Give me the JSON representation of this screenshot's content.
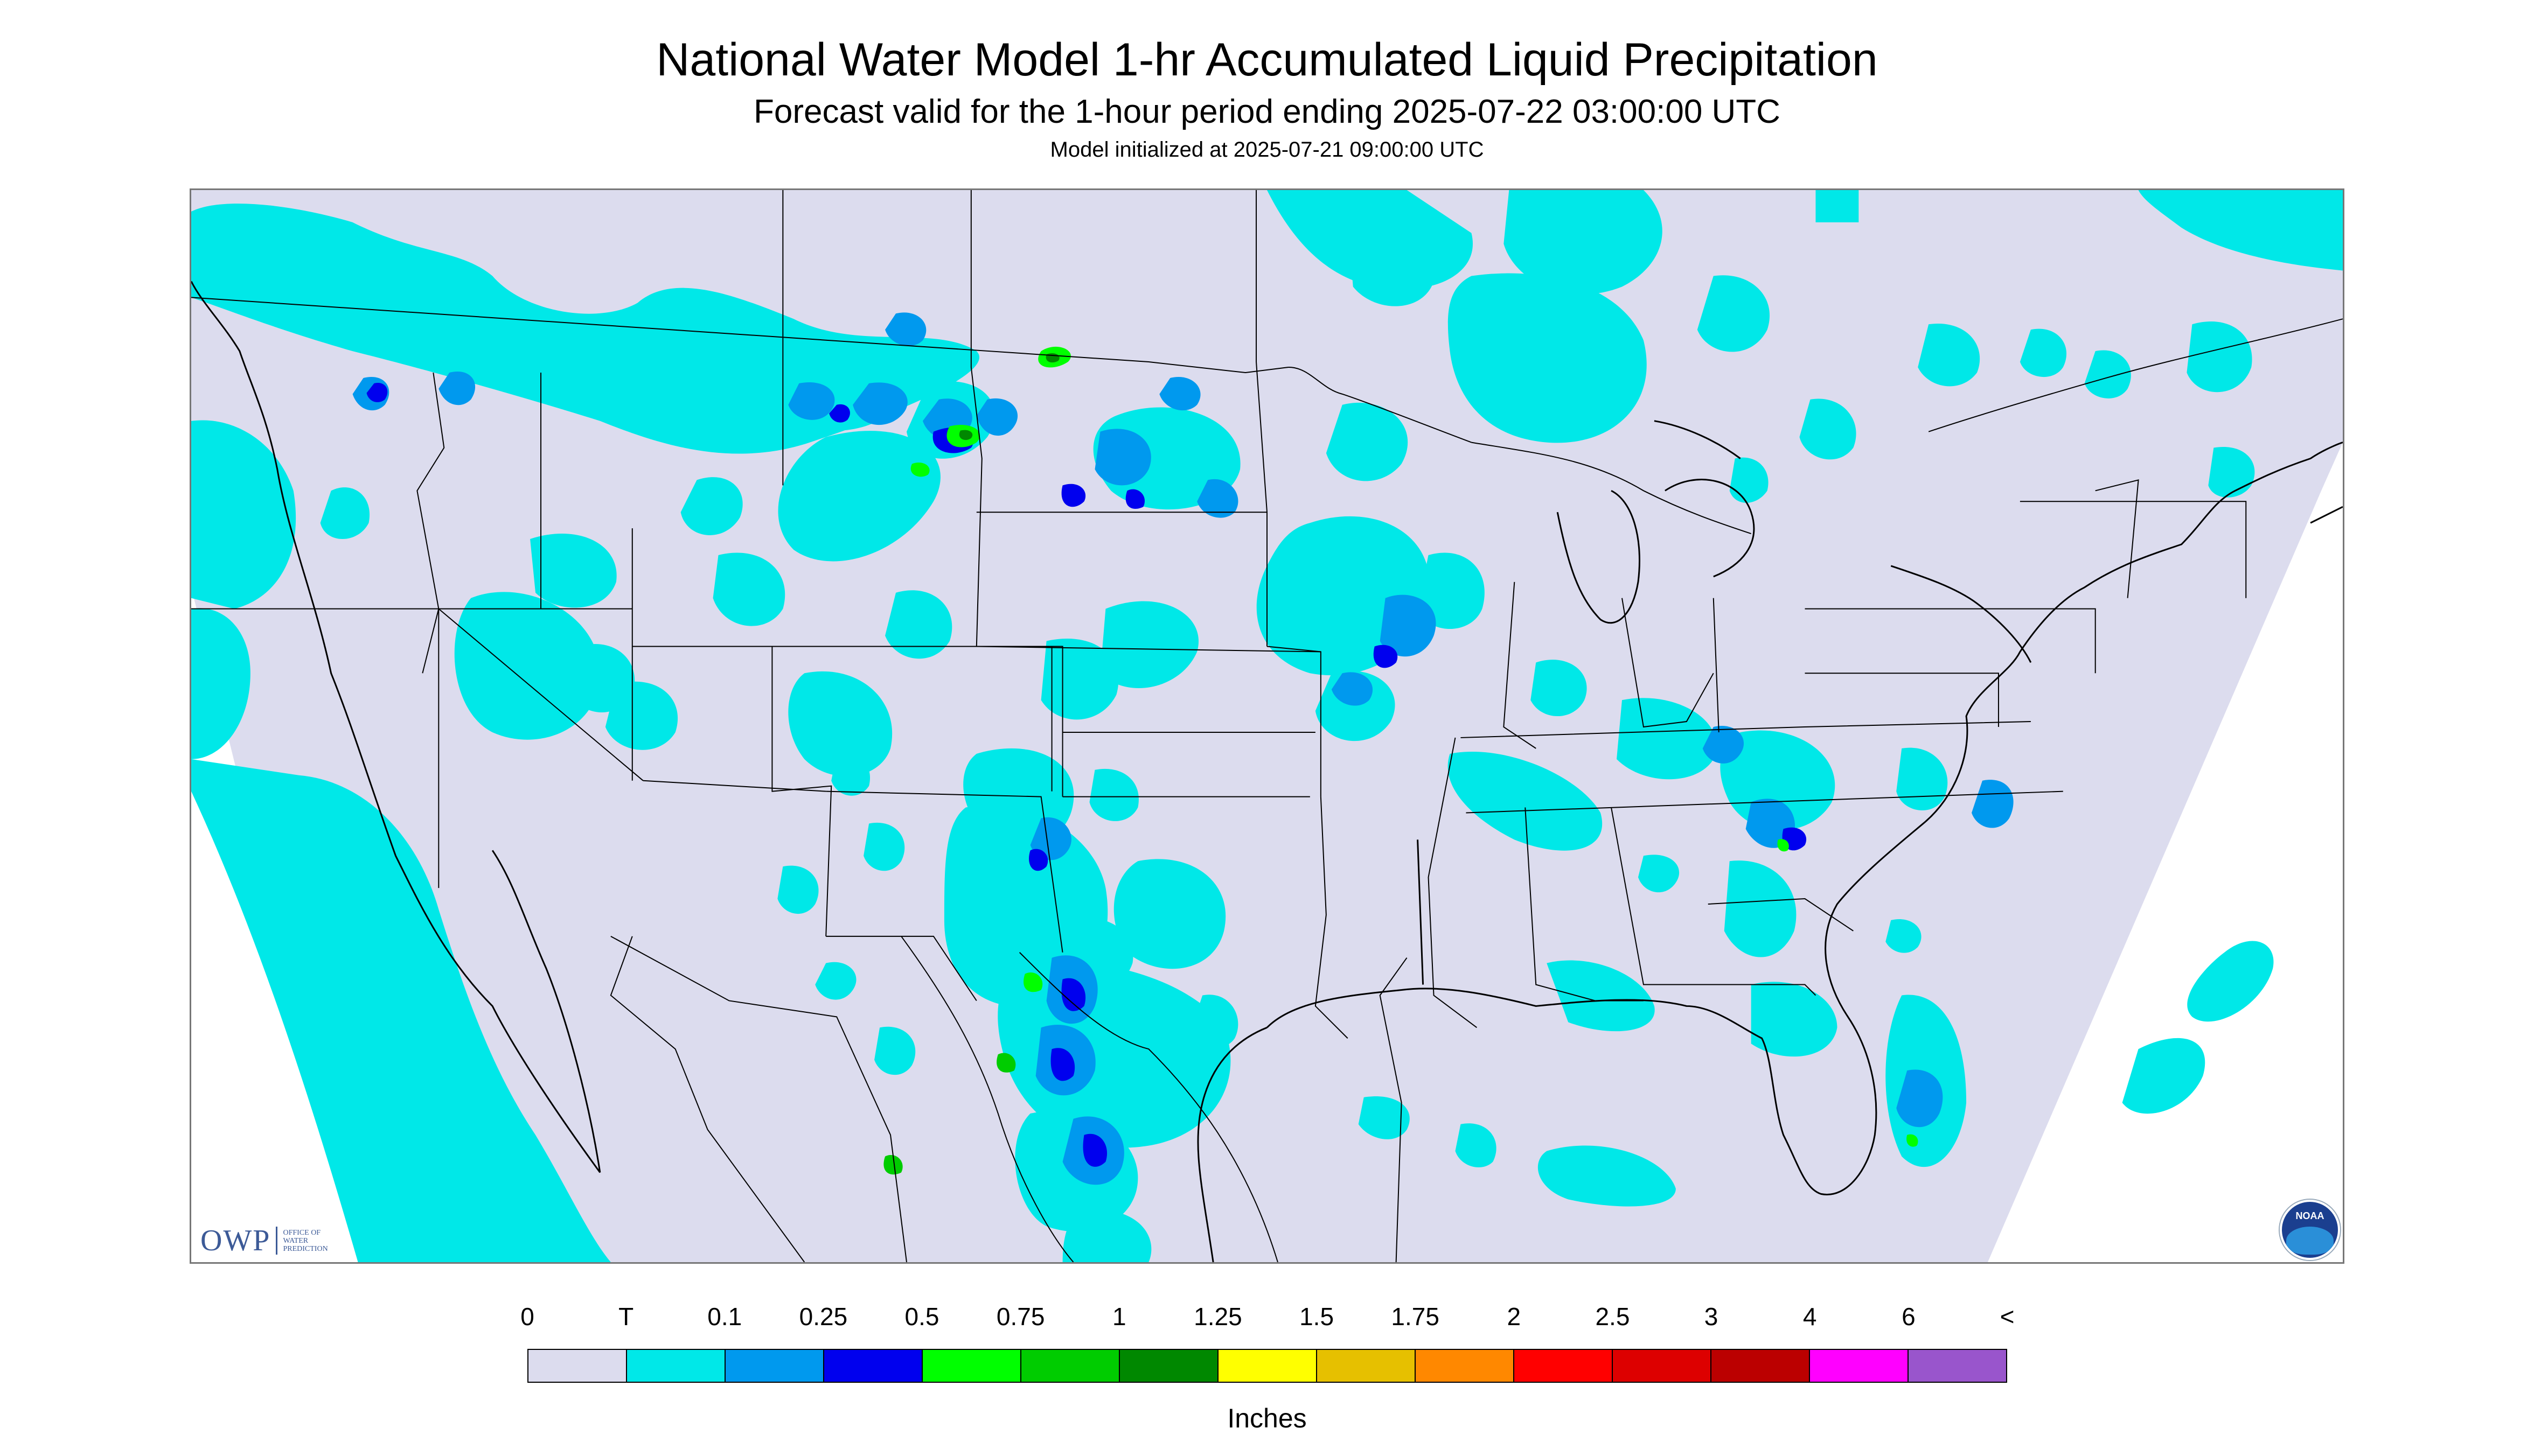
{
  "title": "National Water Model 1-hr Accumulated Liquid Precipitation",
  "subtitle": "Forecast valid for the 1-hour period ending 2025-07-22 03:00:00 UTC",
  "init_text": "Model initialized at 2025-07-21 09:00:00 UTC",
  "map": {
    "background_color": "#dcdcee",
    "boundary_color": "#000000"
  },
  "logos": {
    "owp_text": "OWP",
    "owp_sub": [
      "OFFICE OF",
      "WATER",
      "PREDICTION"
    ],
    "noaa_text": "NOAA"
  },
  "legend": {
    "tick_labels": [
      "0",
      "T",
      "0.1",
      "0.25",
      "0.5",
      "0.75",
      "1",
      "1.25",
      "1.5",
      "1.75",
      "2",
      "2.5",
      "3",
      "4",
      "6",
      "<"
    ],
    "colors": [
      "#dcdcee",
      "#00e8e8",
      "#0099ee",
      "#0000ee",
      "#00ff00",
      "#00cc00",
      "#008800",
      "#ffff00",
      "#e6c000",
      "#ff8800",
      "#ff0000",
      "#dd0000",
      "#bb0000",
      "#ff00ff",
      "#9955cc"
    ],
    "units": "Inches"
  }
}
